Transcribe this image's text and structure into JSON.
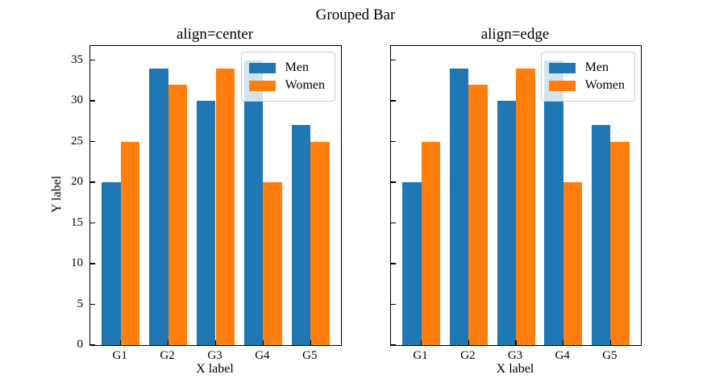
{
  "figure": {
    "background": "#ffffff"
  },
  "chart_data": {
    "type": "bar",
    "title": "Grouped Bar",
    "categories": [
      "G1",
      "G2",
      "G3",
      "G4",
      "G5"
    ],
    "series": [
      {
        "name": "Men",
        "color": "#1f77b4",
        "values": [
          20,
          34,
          30,
          35,
          27
        ]
      },
      {
        "name": "Women",
        "color": "#ff7f0e",
        "values": [
          25,
          32,
          34,
          20,
          25
        ]
      }
    ],
    "subplots": [
      {
        "title": "align=center"
      },
      {
        "title": "align=edge"
      }
    ],
    "xlabel": "X label",
    "ylabel": "Y label",
    "yticks": [
      0,
      5,
      10,
      15,
      20,
      25,
      30,
      35
    ],
    "ylim": [
      0,
      36.75
    ],
    "xlim": [
      -0.64,
      4.64
    ],
    "bar_width": 0.4,
    "grid": false,
    "tick_direction": "in",
    "legend_position": "upper right",
    "legend_labels": [
      "Men",
      "Women"
    ],
    "axes_edge_color": "#000000",
    "legend_border_color": "#cccccc"
  }
}
